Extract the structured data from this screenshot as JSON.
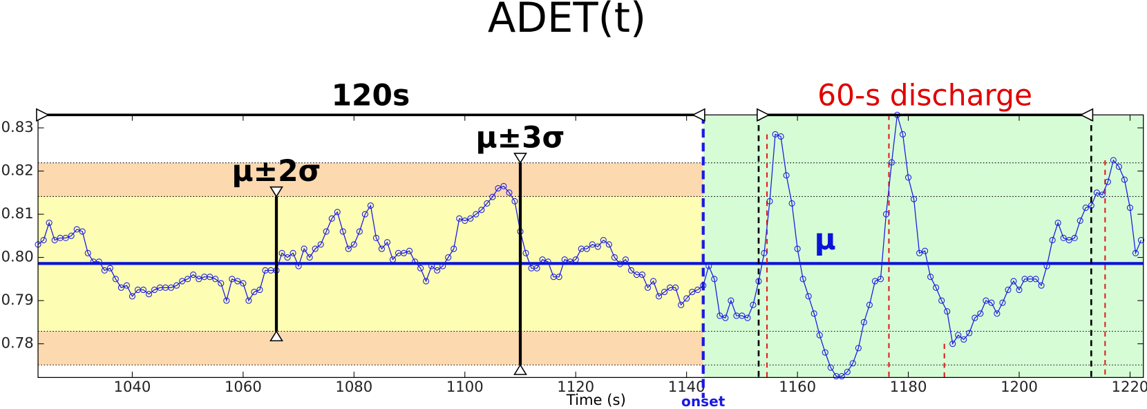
{
  "chart_data": {
    "type": "line",
    "title": "ADET(t)",
    "xlabel": "Time (s)",
    "xlim": [
      1023,
      1222.4
    ],
    "ylim": [
      0.7722,
      0.833
    ],
    "xticks": [
      1040,
      1060,
      1080,
      1100,
      1120,
      1140,
      1160,
      1180,
      1200,
      1220
    ],
    "yticks": [
      0.78,
      0.79,
      {
        "value": 0.8,
        "label": "0.80"
      },
      0.81,
      0.82,
      0.83
    ],
    "color": "#1a1ae0",
    "x": [
      1023,
      1024,
      1025,
      1026,
      1027,
      1028,
      1029,
      1030,
      1031,
      1032,
      1033,
      1034,
      1035,
      1036,
      1037,
      1038,
      1039,
      1040,
      1041,
      1042,
      1043,
      1044,
      1045,
      1046,
      1047,
      1048,
      1049,
      1050,
      1051,
      1052,
      1053,
      1054,
      1055,
      1056,
      1057,
      1058,
      1059,
      1060,
      1061,
      1062,
      1063,
      1064,
      1065,
      1066,
      1067,
      1068,
      1069,
      1070,
      1071,
      1072,
      1073,
      1074,
      1075,
      1076,
      1077,
      1078,
      1079,
      1080,
      1081,
      1082,
      1083,
      1084,
      1085,
      1086,
      1087,
      1088,
      1089,
      1090,
      1091,
      1092,
      1093,
      1094,
      1095,
      1096,
      1097,
      1098,
      1099,
      1100,
      1101,
      1102,
      1103,
      1104,
      1105,
      1106,
      1107,
      1108,
      1109,
      1110,
      1111,
      1112,
      1113,
      1114,
      1115,
      1116,
      1117,
      1118,
      1119,
      1120,
      1121,
      1122,
      1123,
      1124,
      1125,
      1126,
      1127,
      1128,
      1129,
      1130,
      1131,
      1132,
      1133,
      1134,
      1135,
      1136,
      1137,
      1138,
      1139,
      1140,
      1141,
      1142,
      1143,
      1144,
      1145,
      1146,
      1147,
      1148,
      1149,
      1150,
      1151,
      1152,
      1153,
      1154,
      1155,
      1156,
      1157,
      1158,
      1159,
      1160,
      1161,
      1162,
      1163,
      1164,
      1165,
      1166,
      1167,
      1168,
      1169,
      1170,
      1171,
      1172,
      1173,
      1174,
      1175,
      1176,
      1177,
      1178,
      1179,
      1180,
      1181,
      1182,
      1183,
      1184,
      1185,
      1186,
      1187,
      1188,
      1189,
      1190,
      1191,
      1192,
      1193,
      1194,
      1195,
      1196,
      1197,
      1198,
      1199,
      1200,
      1201,
      1202,
      1203,
      1204,
      1205,
      1206,
      1207,
      1208,
      1209,
      1210,
      1211,
      1212,
      1213,
      1214,
      1215,
      1216,
      1217,
      1218,
      1219,
      1220,
      1221,
      1222
    ],
    "values": [
      0.803,
      0.804,
      0.808,
      0.804,
      0.8045,
      0.8045,
      0.805,
      0.8065,
      0.806,
      0.801,
      0.799,
      0.799,
      0.797,
      0.7975,
      0.795,
      0.793,
      0.7935,
      0.791,
      0.7925,
      0.7925,
      0.7915,
      0.7925,
      0.793,
      0.793,
      0.793,
      0.7935,
      0.7945,
      0.795,
      0.796,
      0.795,
      0.7955,
      0.7955,
      0.795,
      0.794,
      0.79,
      0.795,
      0.7945,
      0.794,
      0.79,
      0.792,
      0.7925,
      0.797,
      0.797,
      0.797,
      0.801,
      0.8,
      0.801,
      0.798,
      0.802,
      0.8,
      0.802,
      0.803,
      0.806,
      0.809,
      0.8105,
      0.806,
      0.802,
      0.803,
      0.806,
      0.81,
      0.812,
      0.8045,
      0.802,
      0.8035,
      0.7995,
      0.801,
      0.801,
      0.8015,
      0.799,
      0.7975,
      0.7945,
      0.798,
      0.797,
      0.798,
      0.8,
      0.802,
      0.809,
      0.8085,
      0.809,
      0.81,
      0.811,
      0.8125,
      0.814,
      0.816,
      0.8165,
      0.815,
      0.813,
      0.806,
      0.801,
      0.7975,
      0.7975,
      0.7995,
      0.799,
      0.7955,
      0.7955,
      0.7995,
      0.799,
      0.7995,
      0.802,
      0.802,
      0.803,
      0.8025,
      0.804,
      0.803,
      0.8,
      0.7985,
      0.7995,
      0.797,
      0.796,
      0.796,
      0.793,
      0.7945,
      0.791,
      0.792,
      0.793,
      0.793,
      0.789,
      0.7905,
      0.792,
      0.7925,
      0.7935,
      0.798,
      0.795,
      0.7865,
      0.786,
      0.79,
      0.7865,
      0.7865,
      0.786,
      0.789,
      0.7945,
      0.801,
      0.813,
      0.8285,
      0.828,
      0.819,
      0.8125,
      0.802,
      0.795,
      0.791,
      0.787,
      0.782,
      0.778,
      0.7745,
      0.7725,
      0.7725,
      0.7735,
      0.7755,
      0.779,
      0.785,
      0.789,
      0.7945,
      0.795,
      0.81,
      0.822,
      0.833,
      0.8285,
      0.8185,
      0.8135,
      0.801,
      0.8015,
      0.7955,
      0.793,
      0.79,
      0.7875,
      0.78,
      0.782,
      0.781,
      0.7825,
      0.786,
      0.787,
      0.79,
      0.7895,
      0.787,
      0.7895,
      0.7925,
      0.7945,
      0.7925,
      0.795,
      0.795,
      0.795,
      0.7935,
      0.798,
      0.804,
      0.808,
      0.8045,
      0.804,
      0.8045,
      0.8085,
      0.8115,
      0.812,
      0.815,
      0.8145,
      0.8175,
      0.8225,
      0.821,
      0.818,
      0.8115,
      0.801,
      0.804
    ],
    "mu": 0.7986,
    "mu_label": "μ",
    "mu_color": "#0a14d8",
    "bands": [
      {
        "label": "μ±3σ",
        "range": [
          0.7751,
          0.8219
        ],
        "x": 1110,
        "color": "#fdd9b0"
      },
      {
        "label": "μ±2σ",
        "range": [
          0.7829,
          0.8141
        ],
        "x": 1066,
        "color": "#fdfdb4"
      }
    ],
    "onset": {
      "x": 1143,
      "label": "onset",
      "color": "#1a1ae0"
    },
    "discharge_color": "#d6fcd6",
    "windows": [
      {
        "label": "120s",
        "range": [
          1023,
          1143
        ],
        "color": "#000000"
      },
      {
        "label": "60-s discharge",
        "range": [
          1153,
          1213
        ],
        "color": "#e00000"
      }
    ],
    "peaks": {
      "x": [
        1154.5,
        1176.5,
        1186.5,
        1215.5
      ],
      "values": [
        0.8285,
        0.833,
        0.78,
        0.8225
      ],
      "color": "#e02020"
    }
  }
}
